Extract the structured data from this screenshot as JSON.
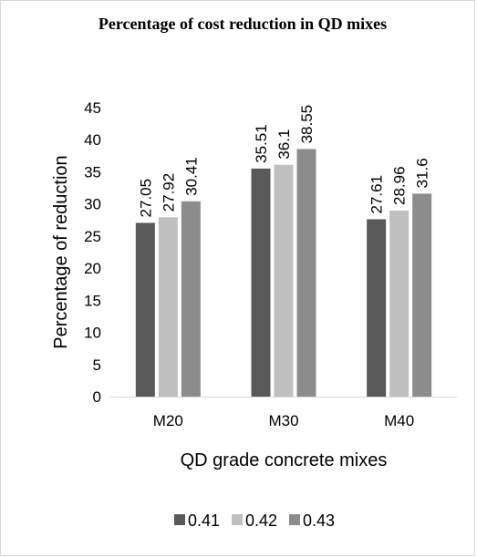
{
  "chart_data": {
    "type": "bar",
    "title": "Percentage of cost reduction in QD mixes",
    "xlabel": "QD grade concrete mixes",
    "ylabel": "Percentage of reduction",
    "categories": [
      "M20",
      "M30",
      "M40"
    ],
    "series": [
      {
        "name": "0.41",
        "values": [
          27.05,
          35.51,
          27.61
        ],
        "color": "#595959"
      },
      {
        "name": "0.42",
        "values": [
          27.92,
          36.1,
          28.96
        ],
        "color": "#bfbfbf"
      },
      {
        "name": "0.43",
        "values": [
          30.41,
          38.55,
          31.6
        ],
        "color": "#8c8c8c"
      }
    ],
    "ylim": [
      0,
      45
    ],
    "yticks": [
      0,
      5,
      10,
      15,
      20,
      25,
      30,
      35,
      40,
      45
    ],
    "grid": false,
    "legend_position": "bottom",
    "data_labels": true
  }
}
